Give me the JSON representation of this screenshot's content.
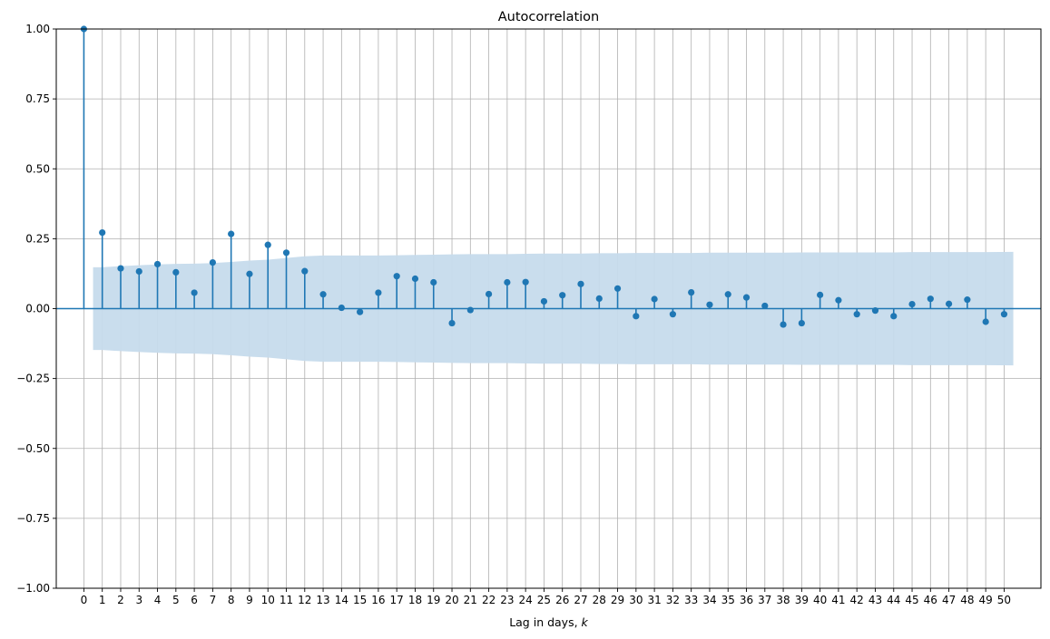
{
  "chart_data": {
    "type": "stem",
    "title": "Autocorrelation",
    "xlabel_prefix": "Lag in days, ",
    "xlabel_var": "k",
    "ylabel": "",
    "xlim": [
      -1.5,
      52
    ],
    "ylim": [
      -1.0,
      1.0
    ],
    "yticks": [
      -1.0,
      -0.75,
      -0.5,
      -0.25,
      0.0,
      0.25,
      0.5,
      0.75,
      1.0
    ],
    "ytick_labels": [
      "−1.00",
      "−0.75",
      "−0.50",
      "−0.25",
      "0.00",
      "0.25",
      "0.50",
      "0.75",
      "1.00"
    ],
    "xticks": [
      0,
      1,
      2,
      3,
      4,
      5,
      6,
      7,
      8,
      9,
      10,
      11,
      12,
      13,
      14,
      15,
      16,
      17,
      18,
      19,
      20,
      21,
      22,
      23,
      24,
      25,
      26,
      27,
      28,
      29,
      30,
      31,
      32,
      33,
      34,
      35,
      36,
      37,
      38,
      39,
      40,
      41,
      42,
      43,
      44,
      45,
      46,
      47,
      48,
      49,
      50
    ],
    "grid": true,
    "colors": {
      "stem": "#1f77b4",
      "band": "#c6dbec",
      "grid": "#b0b0b0"
    },
    "lags": [
      0,
      1,
      2,
      3,
      4,
      5,
      6,
      7,
      8,
      9,
      10,
      11,
      12,
      13,
      14,
      15,
      16,
      17,
      18,
      19,
      20,
      21,
      22,
      23,
      24,
      25,
      26,
      27,
      28,
      29,
      30,
      31,
      32,
      33,
      34,
      35,
      36,
      37,
      38,
      39,
      40,
      41,
      42,
      43,
      44,
      45,
      46,
      47,
      48,
      49,
      50
    ],
    "acf": [
      1.0,
      0.272,
      0.144,
      0.133,
      0.159,
      0.13,
      0.057,
      0.165,
      0.267,
      0.124,
      0.228,
      0.2,
      0.134,
      0.051,
      0.003,
      -0.012,
      0.057,
      0.116,
      0.107,
      0.094,
      -0.052,
      -0.005,
      0.052,
      0.094,
      0.095,
      0.026,
      0.048,
      0.088,
      0.036,
      0.072,
      -0.027,
      0.034,
      -0.02,
      0.058,
      0.014,
      0.051,
      0.04,
      0.01,
      -0.057,
      -0.052,
      0.049,
      0.03,
      -0.02,
      -0.007,
      -0.027,
      0.016,
      0.035,
      0.017,
      0.032,
      -0.047,
      -0.02
    ],
    "confidence_band_lags": [
      0.5,
      1,
      2,
      3,
      4,
      5,
      6,
      7,
      8,
      9,
      10,
      11,
      12,
      13,
      14,
      15,
      16,
      17,
      18,
      19,
      20,
      21,
      22,
      23,
      24,
      25,
      26,
      27,
      28,
      29,
      30,
      31,
      32,
      33,
      34,
      35,
      36,
      37,
      38,
      39,
      40,
      41,
      42,
      43,
      44,
      45,
      46,
      47,
      48,
      49,
      50.5
    ],
    "confidence_band": [
      0.148,
      0.148,
      0.152,
      0.155,
      0.158,
      0.16,
      0.161,
      0.163,
      0.167,
      0.172,
      0.175,
      0.181,
      0.187,
      0.19,
      0.19,
      0.19,
      0.19,
      0.191,
      0.192,
      0.193,
      0.194,
      0.195,
      0.195,
      0.195,
      0.196,
      0.197,
      0.197,
      0.197,
      0.198,
      0.198,
      0.199,
      0.199,
      0.199,
      0.199,
      0.2,
      0.2,
      0.2,
      0.2,
      0.2,
      0.201,
      0.201,
      0.201,
      0.201,
      0.201,
      0.201,
      0.202,
      0.202,
      0.202,
      0.202,
      0.202,
      0.203
    ]
  }
}
